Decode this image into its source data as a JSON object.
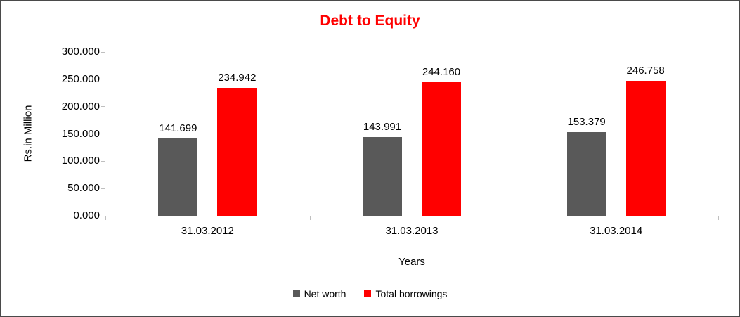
{
  "frame": {
    "background": "#ffffff",
    "border_color": "#4a4a4a"
  },
  "chart_data": {
    "type": "bar",
    "title": "Debt to Equity",
    "title_color": "#ff0000",
    "xlabel": "Years",
    "ylabel": "Rs.in Million",
    "categories": [
      "31.03.2012",
      "31.03.2013",
      "31.03.2014"
    ],
    "series": [
      {
        "name": "Net worth",
        "color": "#595959",
        "values": [
          141.699,
          143.991,
          153.379
        ],
        "labels": [
          "141.699",
          "143.991",
          "153.379"
        ]
      },
      {
        "name": "Total borrowings",
        "color": "#ff0000",
        "values": [
          234.942,
          244.16,
          246.758
        ],
        "labels": [
          "234.942",
          "244.160",
          "246.758"
        ]
      }
    ],
    "ylim": [
      0,
      300
    ],
    "yticks": [
      "0.000",
      "50.000",
      "100.000",
      "150.000",
      "200.000",
      "250.000",
      "300.000"
    ],
    "grid": false,
    "legend_position": "bottom",
    "axis_line_color": "#bfbfbf"
  }
}
